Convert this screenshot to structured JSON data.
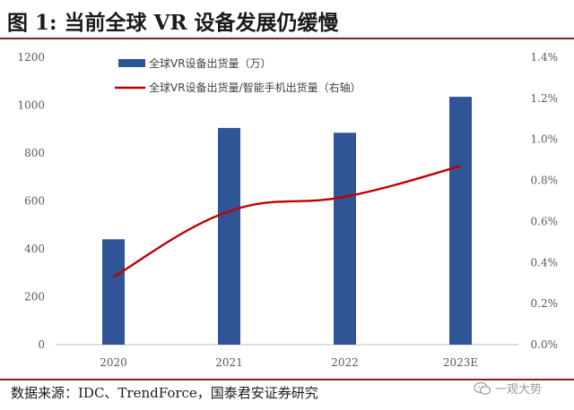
{
  "header": {
    "title": "图 1:  当前全球 VR 设备发展仍缓慢"
  },
  "footer": {
    "source": "数据来源：IDC、TrendForce，国泰君安证券研究",
    "watermark": "一观大势"
  },
  "colors": {
    "bar": "#2f5597",
    "line": "#c00000",
    "rule": "#8c1f24"
  },
  "chart_data": {
    "type": "bar",
    "categories": [
      "2020",
      "2021",
      "2022",
      "2023E"
    ],
    "series": [
      {
        "name": "全球VR设备出货量（万）",
        "type": "bar",
        "axis": "left",
        "values": [
          440,
          905,
          885,
          1035
        ]
      },
      {
        "name": "全球VR设备出货量/智能手机出货量（右轴）",
        "type": "line",
        "axis": "right",
        "values": [
          0.33,
          0.65,
          0.72,
          0.87
        ]
      }
    ],
    "y_left": {
      "ylim": [
        0,
        1200
      ],
      "ticks": [
        "0",
        "200",
        "400",
        "600",
        "800",
        "1000",
        "1200"
      ],
      "tick_values": [
        0,
        200,
        400,
        600,
        800,
        1000,
        1200
      ]
    },
    "y_right": {
      "ylim": [
        0,
        1.4
      ],
      "ticks": [
        "0.0%",
        "0.2%",
        "0.4%",
        "0.6%",
        "0.8%",
        "1.0%",
        "1.2%",
        "1.4%"
      ],
      "tick_values": [
        0,
        0.2,
        0.4,
        0.6,
        0.8,
        1.0,
        1.2,
        1.4
      ]
    },
    "legend_position": "top-center"
  }
}
